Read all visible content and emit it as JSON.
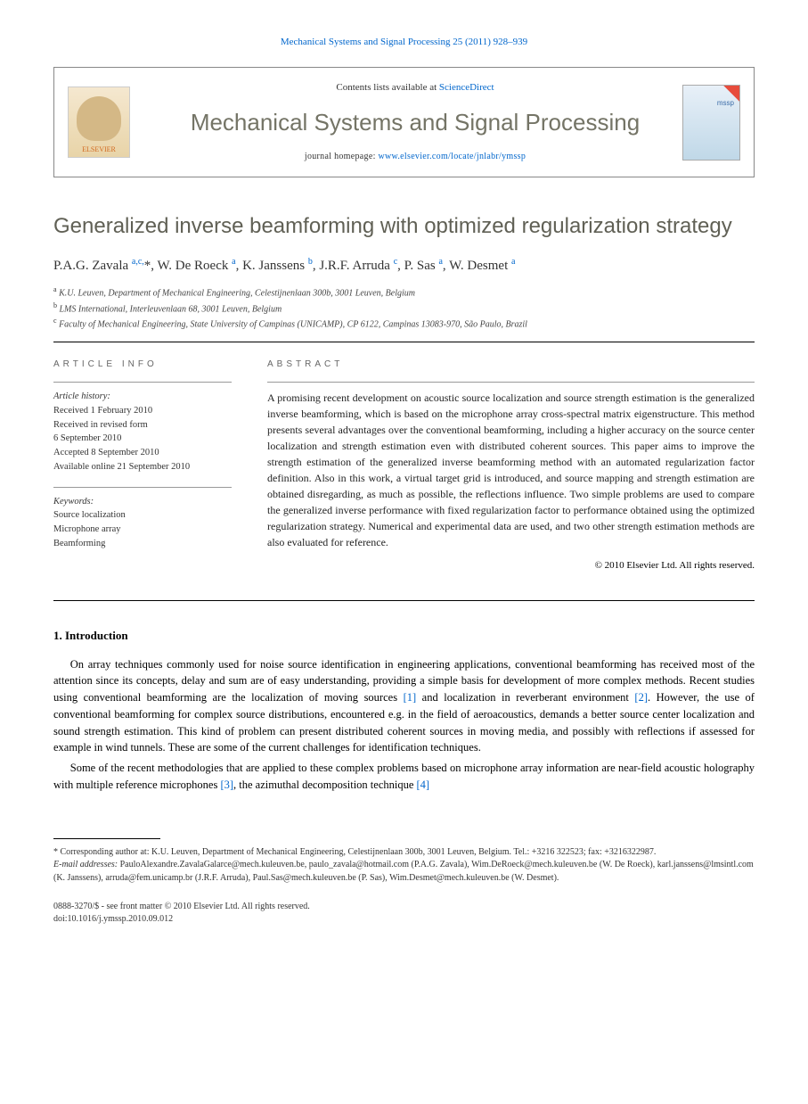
{
  "citation": "Mechanical Systems and Signal Processing 25 (2011) 928–939",
  "header": {
    "contents_prefix": "Contents lists available at ",
    "contents_link": "ScienceDirect",
    "journal": "Mechanical Systems and Signal Processing",
    "homepage_prefix": "journal homepage: ",
    "homepage_url": "www.elsevier.com/locate/jnlabr/ymssp",
    "publisher": "ELSEVIER",
    "cover_label": "mssp"
  },
  "title": "Generalized inverse beamforming with optimized regularization strategy",
  "authors_html": "P.A.G. Zavala <sup>a,c,</sup>*, W. De Roeck <sup>a</sup>, K. Janssens <sup>b</sup>, J.R.F. Arruda <sup>c</sup>, P. Sas <sup>a</sup>, W. Desmet <sup>a</sup>",
  "affiliations": {
    "a": "K.U. Leuven, Department of Mechanical Engineering, Celestijnenlaan 300b, 3001 Leuven, Belgium",
    "b": "LMS International, Interleuvenlaan 68, 3001 Leuven, Belgium",
    "c": "Faculty of Mechanical Engineering, State University of Campinas (UNICAMP), CP 6122, Campinas 13083-970, São Paulo, Brazil"
  },
  "info": {
    "head": "ARTICLE INFO",
    "history_label": "Article history:",
    "history": [
      "Received 1 February 2010",
      "Received in revised form",
      "6 September 2010",
      "Accepted 8 September 2010",
      "Available online 21 September 2010"
    ],
    "keywords_label": "Keywords:",
    "keywords": [
      "Source localization",
      "Microphone array",
      "Beamforming"
    ]
  },
  "abstract": {
    "head": "ABSTRACT",
    "text": "A promising recent development on acoustic source localization and source strength estimation is the generalized inverse beamforming, which is based on the microphone array cross-spectral matrix eigenstructure. This method presents several advantages over the conventional beamforming, including a higher accuracy on the source center localization and strength estimation even with distributed coherent sources. This paper aims to improve the strength estimation of the generalized inverse beamforming method with an automated regularization factor definition. Also in this work, a virtual target grid is introduced, and source mapping and strength estimation are obtained disregarding, as much as possible, the reflections influence. Two simple problems are used to compare the generalized inverse performance with fixed regularization factor to performance obtained using the optimized regularization strategy. Numerical and experimental data are used, and two other strength estimation methods are also evaluated for reference.",
    "copyright": "© 2010 Elsevier Ltd. All rights reserved."
  },
  "section1": {
    "title": "1. Introduction",
    "p1_a": "On array techniques commonly used for noise source identification in engineering applications, conventional beamforming has received most of the attention since its concepts, delay and sum are of easy understanding, providing a simple basis for development of more complex methods. Recent studies using conventional beamforming are the localization of moving sources ",
    "ref1": "[1]",
    "p1_b": " and localization in reverberant environment ",
    "ref2": "[2]",
    "p1_c": ". However, the use of conventional beamforming for complex source distributions, encountered e.g. in the field of aeroacoustics, demands a better source center localization and sound strength estimation. This kind of problem can present distributed coherent sources in moving media, and possibly with reflections if assessed for example in wind tunnels. These are some of the current challenges for identification techniques.",
    "p2_a": "Some of the recent methodologies that are applied to these complex problems based on microphone array information are near-field acoustic holography with multiple reference microphones ",
    "ref3": "[3]",
    "p2_b": ", the azimuthal decomposition technique ",
    "ref4": "[4]"
  },
  "footnotes": {
    "corr": "* Corresponding author at: K.U. Leuven, Department of Mechanical Engineering, Celestijnenlaan 300b, 3001 Leuven, Belgium. Tel.: +3216 322523; fax: +3216322987.",
    "email_label": "E-mail addresses:",
    "emails": " PauloAlexandre.ZavalaGalarce@mech.kuleuven.be, paulo_zavala@hotmail.com (P.A.G. Zavala), Wim.DeRoeck@mech.kuleuven.be (W. De Roeck), karl.janssens@lmsintl.com (K. Janssens), arruda@fem.unicamp.br (J.R.F. Arruda), Paul.Sas@mech.kuleuven.be (P. Sas), Wim.Desmet@mech.kuleuven.be (W. Desmet)."
  },
  "bottom": {
    "issn": "0888-3270/$ - see front matter © 2010 Elsevier Ltd. All rights reserved.",
    "doi": "doi:10.1016/j.ymssp.2010.09.012"
  }
}
